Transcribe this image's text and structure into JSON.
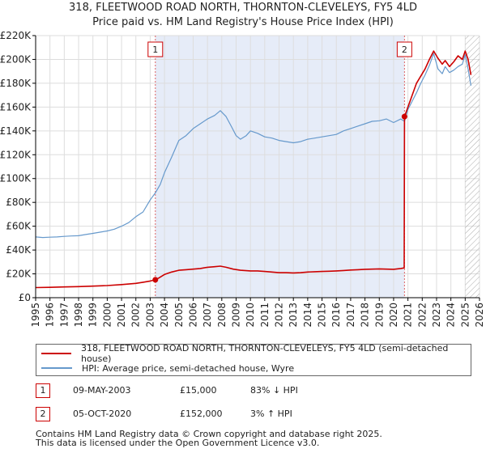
{
  "chart_data": {
    "type": "line",
    "title": "318, FLEETWOOD ROAD NORTH, THORNTON-CLEVELEYS, FY5 4LD",
    "subtitle": "Price paid vs. HM Land Registry's House Price Index (HPI)",
    "xlim": [
      1995,
      2026
    ],
    "ylim": [
      0,
      220000
    ],
    "x_ticks": [
      "1995",
      "1996",
      "1997",
      "1998",
      "1999",
      "2000",
      "2001",
      "2002",
      "2003",
      "2004",
      "2005",
      "2006",
      "2007",
      "2008",
      "2009",
      "2010",
      "2011",
      "2012",
      "2013",
      "2014",
      "2015",
      "2016",
      "2017",
      "2018",
      "2019",
      "2020",
      "2021",
      "2022",
      "2023",
      "2024",
      "2025",
      "2026"
    ],
    "y_ticks": [
      {
        "value": 0,
        "label": "£0"
      },
      {
        "value": 20000,
        "label": "£20K"
      },
      {
        "value": 40000,
        "label": "£40K"
      },
      {
        "value": 60000,
        "label": "£60K"
      },
      {
        "value": 80000,
        "label": "£80K"
      },
      {
        "value": 100000,
        "label": "£100K"
      },
      {
        "value": 120000,
        "label": "£120K"
      },
      {
        "value": 140000,
        "label": "£140K"
      },
      {
        "value": 160000,
        "label": "£160K"
      },
      {
        "value": 180000,
        "label": "£180K"
      },
      {
        "value": 200000,
        "label": "£200K"
      },
      {
        "value": 220000,
        "label": "£220K"
      }
    ],
    "grid": true,
    "shaded_period": [
      2003.36,
      2020.76
    ],
    "future_hatch_from": 2025.0,
    "series": [
      {
        "name": "318, FLEETWOOD ROAD NORTH, THORNTON-CLEVELEYS, FY5 4LD (semi-detached house)",
        "color": "#cc0000",
        "x": [
          1995.0,
          1996.0,
          1997.0,
          1998.0,
          1999.0,
          2000.0,
          2001.0,
          2002.0,
          2002.5,
          2003.0,
          2003.36,
          2003.6,
          2004.0,
          2004.5,
          2005.0,
          2005.5,
          2006.0,
          2006.5,
          2007.0,
          2007.5,
          2007.9,
          2008.3,
          2008.8,
          2009.3,
          2010.0,
          2010.5,
          2011.0,
          2011.5,
          2012.0,
          2012.5,
          2013.0,
          2013.5,
          2014.0,
          2014.5,
          2015.0,
          2015.5,
          2016.0,
          2016.5,
          2017.0,
          2017.5,
          2018.0,
          2018.5,
          2019.0,
          2019.5,
          2020.0,
          2020.5,
          2020.74,
          2020.76,
          2021.0,
          2021.3,
          2021.6,
          2021.9,
          2022.2,
          2022.5,
          2022.8,
          2023.1,
          2023.4,
          2023.6,
          2023.9,
          2024.2,
          2024.5,
          2024.8,
          2025.0,
          2025.2,
          2025.4
        ],
        "y": [
          8500,
          8700,
          9000,
          9300,
          9700,
          10200,
          11000,
          12000,
          13000,
          14000,
          15000,
          16500,
          19500,
          21500,
          23000,
          23500,
          24000,
          24500,
          25500,
          26000,
          26500,
          25500,
          24000,
          23000,
          22500,
          22500,
          22000,
          21500,
          21000,
          21000,
          20800,
          21000,
          21500,
          21800,
          22000,
          22200,
          22500,
          22800,
          23200,
          23500,
          23800,
          24000,
          24200,
          24000,
          23800,
          24500,
          25000,
          152000,
          160000,
          170000,
          180000,
          186000,
          192000,
          200000,
          207000,
          201000,
          196000,
          199000,
          194000,
          198000,
          203000,
          200000,
          207000,
          200000,
          187000
        ]
      },
      {
        "name": "HPI: Average price, semi-detached house, Wyre",
        "color": "#6699cc",
        "x": [
          1995.0,
          1995.5,
          1996.0,
          1996.5,
          1997.0,
          1997.5,
          1998.0,
          1998.5,
          1999.0,
          1999.5,
          2000.0,
          2000.5,
          2001.0,
          2001.5,
          2002.0,
          2002.5,
          2003.0,
          2003.36,
          2003.7,
          2004.0,
          2004.5,
          2005.0,
          2005.5,
          2006.0,
          2006.5,
          2007.0,
          2007.5,
          2007.9,
          2008.3,
          2008.7,
          2009.0,
          2009.3,
          2009.7,
          2010.0,
          2010.5,
          2011.0,
          2011.5,
          2012.0,
          2012.5,
          2013.0,
          2013.5,
          2014.0,
          2014.5,
          2015.0,
          2015.5,
          2016.0,
          2016.5,
          2017.0,
          2017.5,
          2018.0,
          2018.5,
          2019.0,
          2019.5,
          2020.0,
          2020.5,
          2020.76,
          2021.0,
          2021.3,
          2021.6,
          2021.9,
          2022.2,
          2022.5,
          2022.8,
          2023.1,
          2023.4,
          2023.6,
          2023.9,
          2024.2,
          2024.5,
          2024.8,
          2025.0,
          2025.2,
          2025.4
        ],
        "y": [
          51000,
          50500,
          50800,
          51000,
          51500,
          51800,
          52000,
          53000,
          54000,
          55000,
          56000,
          57500,
          60000,
          63000,
          68000,
          72000,
          82000,
          88000,
          95000,
          105000,
          118000,
          132000,
          136000,
          142000,
          146000,
          150000,
          153000,
          157000,
          152000,
          143000,
          136000,
          133000,
          136000,
          140000,
          138000,
          135000,
          134000,
          132000,
          131000,
          130000,
          131000,
          133000,
          134000,
          135000,
          136000,
          137000,
          140000,
          142000,
          144000,
          146000,
          148000,
          148500,
          150000,
          147000,
          150000,
          148000,
          158000,
          165000,
          172000,
          180000,
          187000,
          195000,
          205000,
          192000,
          188000,
          194000,
          189000,
          191000,
          194000,
          196000,
          204000,
          192000,
          178000
        ]
      }
    ],
    "markers": [
      {
        "label": "1",
        "x": 2003.36,
        "y": 15000
      },
      {
        "label": "2",
        "x": 2020.76,
        "y": 152000
      }
    ]
  },
  "legend": {
    "price_paid": "318, FLEETWOOD ROAD NORTH, THORNTON-CLEVELEYS, FY5 4LD (semi-detached house)",
    "hpi": "HPI: Average price, semi-detached house, Wyre"
  },
  "sales": [
    {
      "num": "1",
      "date": "09-MAY-2003",
      "price": "£15,000",
      "hpi": "83% ↓ HPI"
    },
    {
      "num": "2",
      "date": "05-OCT-2020",
      "price": "£152,000",
      "hpi": "3% ↑ HPI"
    }
  ],
  "footer": {
    "line1": "Contains HM Land Registry data © Crown copyright and database right 2025.",
    "line2": "This data is licensed under the Open Government Licence v3.0."
  },
  "colors": {
    "price_line": "#cc0000",
    "hpi_line": "#6699cc",
    "shade": "#e6ecf8",
    "grid": "#dddddd"
  }
}
